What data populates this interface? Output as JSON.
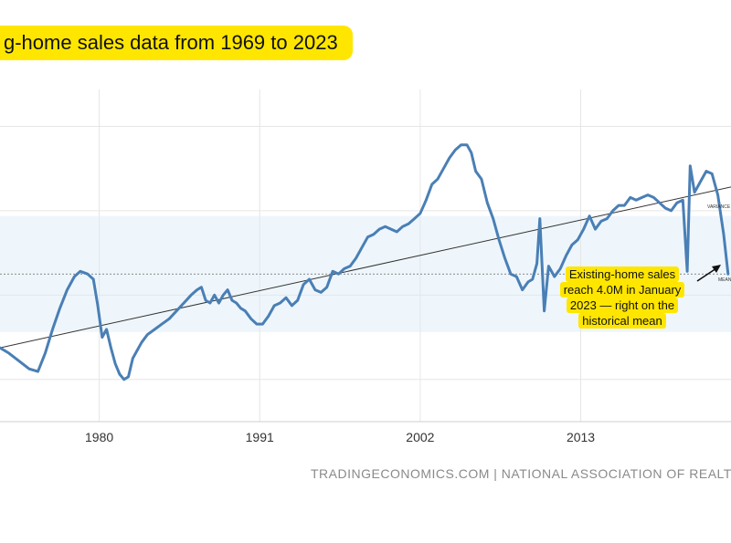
{
  "title": "g-home sales data from 1969 to 2023",
  "source": "TRADINGECONOMICS.COM | NATIONAL ASSOCIATION OF REALT",
  "annotation": "Existing-home sales reach 4.0M in January 2023 — right on the historical mean",
  "colors": {
    "series": "#4a7fb5",
    "band": "#eef6fc",
    "highlight": "#ffe600",
    "trend": "#333333",
    "mean": "#666666"
  },
  "chart_data": {
    "type": "line",
    "xlim": [
      1973.2,
      2023.3
    ],
    "ylim": [
      1.2,
      7.5
    ],
    "x_ticks": [
      1980,
      1991,
      2002,
      2013
    ],
    "y_gridlines": [
      2.0,
      3.6,
      5.2,
      6.8
    ],
    "band": [
      2.9,
      5.1
    ],
    "mean": {
      "value": 4.0,
      "label": "MEAN"
    },
    "variance_label": "VARIANCE",
    "trend": {
      "x": [
        1973.2,
        2023.3
      ],
      "y": [
        2.6,
        5.65
      ]
    },
    "grid": true,
    "series": [
      {
        "x": [
          1973.2,
          1973.8,
          1974.5,
          1975.2,
          1975.8,
          1976.3,
          1976.8,
          1977.3,
          1977.8,
          1978.3,
          1978.7,
          1979.2,
          1979.6,
          1979.9,
          1980.2,
          1980.5,
          1980.8,
          1981.1,
          1981.4,
          1981.7,
          1982.0,
          1982.3,
          1982.6,
          1982.9,
          1983.3,
          1983.8,
          1984.3,
          1984.8,
          1985.3,
          1985.8,
          1986.3,
          1986.7,
          1987.0,
          1987.3,
          1987.6,
          1987.9,
          1988.2,
          1988.5,
          1988.8,
          1989.1,
          1989.4,
          1989.7,
          1990.0,
          1990.4,
          1990.8,
          1991.2,
          1991.6,
          1992.0,
          1992.4,
          1992.8,
          1993.2,
          1993.6,
          1994.0,
          1994.4,
          1994.8,
          1995.2,
          1995.6,
          1996.0,
          1996.4,
          1996.8,
          1997.2,
          1997.6,
          1998.0,
          1998.4,
          1998.8,
          1999.2,
          1999.6,
          2000.0,
          2000.4,
          2000.8,
          2001.2,
          2001.6,
          2002.0,
          2002.4,
          2002.8,
          2003.2,
          2003.6,
          2004.0,
          2004.4,
          2004.8,
          2005.2,
          2005.5,
          2005.8,
          2006.2,
          2006.6,
          2007.0,
          2007.4,
          2007.8,
          2008.2,
          2008.6,
          2009.0,
          2009.4,
          2009.7,
          2010.0,
          2010.2,
          2010.5,
          2010.8,
          2011.2,
          2011.6,
          2012.0,
          2012.4,
          2012.8,
          2013.2,
          2013.6,
          2014.0,
          2014.4,
          2014.8,
          2015.2,
          2015.6,
          2016.0,
          2016.4,
          2016.8,
          2017.2,
          2017.6,
          2018.0,
          2018.4,
          2018.8,
          2019.2,
          2019.6,
          2020.0,
          2020.3,
          2020.5,
          2020.8,
          2021.2,
          2021.6,
          2022.0,
          2022.4,
          2022.8,
          2023.1
        ],
        "y": [
          2.6,
          2.5,
          2.35,
          2.2,
          2.15,
          2.5,
          2.95,
          3.35,
          3.7,
          3.95,
          4.05,
          4.0,
          3.9,
          3.4,
          2.8,
          2.95,
          2.6,
          2.3,
          2.1,
          2.0,
          2.05,
          2.4,
          2.55,
          2.7,
          2.85,
          2.95,
          3.05,
          3.15,
          3.3,
          3.45,
          3.6,
          3.7,
          3.75,
          3.5,
          3.45,
          3.6,
          3.45,
          3.6,
          3.7,
          3.5,
          3.45,
          3.35,
          3.3,
          3.15,
          3.05,
          3.05,
          3.2,
          3.4,
          3.45,
          3.55,
          3.4,
          3.5,
          3.8,
          3.9,
          3.7,
          3.65,
          3.75,
          4.05,
          4.0,
          4.1,
          4.15,
          4.3,
          4.5,
          4.7,
          4.75,
          4.85,
          4.9,
          4.85,
          4.8,
          4.9,
          4.95,
          5.05,
          5.15,
          5.4,
          5.7,
          5.8,
          6.0,
          6.2,
          6.35,
          6.45,
          6.45,
          6.3,
          5.95,
          5.8,
          5.35,
          5.05,
          4.65,
          4.3,
          4.0,
          3.95,
          3.7,
          3.85,
          3.9,
          4.2,
          5.05,
          3.3,
          4.15,
          3.95,
          4.1,
          4.35,
          4.55,
          4.65,
          4.85,
          5.1,
          4.85,
          5.0,
          5.05,
          5.2,
          5.3,
          5.3,
          5.45,
          5.4,
          5.45,
          5.5,
          5.45,
          5.35,
          5.25,
          5.2,
          5.35,
          5.4,
          4.05,
          6.05,
          5.55,
          5.75,
          5.95,
          5.9,
          5.5,
          4.75,
          4.0
        ]
      }
    ]
  }
}
